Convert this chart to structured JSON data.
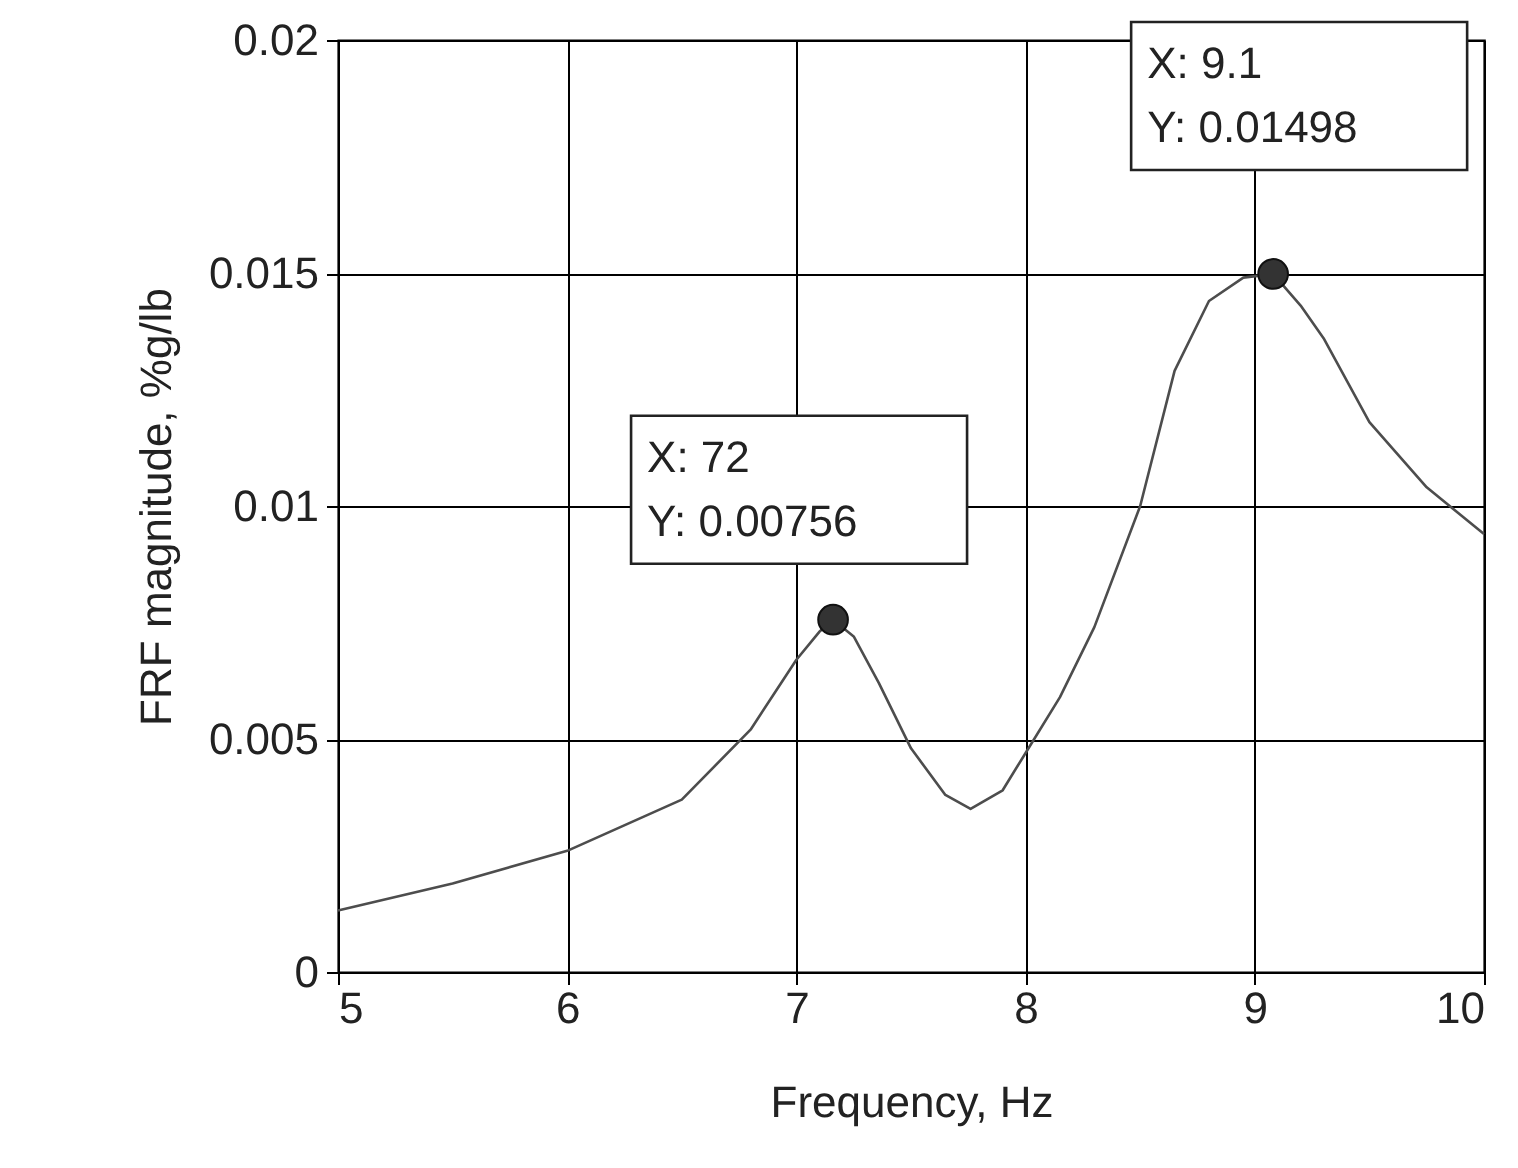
{
  "chart_data": {
    "type": "line",
    "xlabel": "Frequency, Hz",
    "ylabel": "FRF magnitude, %g/lb",
    "xlim": [
      5,
      10
    ],
    "xticks": [
      5,
      6,
      7,
      8,
      9,
      10
    ],
    "ylim": [
      0,
      0.02
    ],
    "yticks": [
      0,
      0.005,
      0.01,
      0.015,
      0.02
    ],
    "grid": true,
    "marker": "none",
    "line_style": "solid",
    "series": [
      {
        "color": "#4d4d4d",
        "x": [
          5,
          5.5,
          6,
          6.5,
          6.8,
          7,
          7.1,
          7.16,
          7.25,
          7.36,
          7.5,
          7.65,
          7.76,
          7.9,
          8,
          8.15,
          8.3,
          8.5,
          8.65,
          8.8,
          8.95,
          9.08,
          9.2,
          9.3,
          9.5,
          9.75,
          10
        ],
        "values": [
          0.00132,
          0.0019,
          0.0026,
          0.0037,
          0.0052,
          0.0067,
          0.0073,
          0.00756,
          0.0072,
          0.0062,
          0.0048,
          0.0038,
          0.0035,
          0.0039,
          0.0047,
          0.0059,
          0.0074,
          0.01,
          0.0129,
          0.0144,
          0.0149,
          0.01498,
          0.0143,
          0.0136,
          0.0118,
          0.0104,
          0.0094
        ]
      },
      {
        "type": "scatter",
        "color": "#333333",
        "marker": "circle",
        "x": [
          7.16,
          9.08
        ],
        "values": [
          0.00756,
          0.01498
        ]
      }
    ],
    "annotations": [
      {
        "text": "X: 72\nY: 0.00756",
        "x": 7.16,
        "y": 0.00756
      },
      {
        "text": "X: 9.1\nY: 0.01498",
        "x": 9.08,
        "y": 0.01498
      }
    ]
  }
}
